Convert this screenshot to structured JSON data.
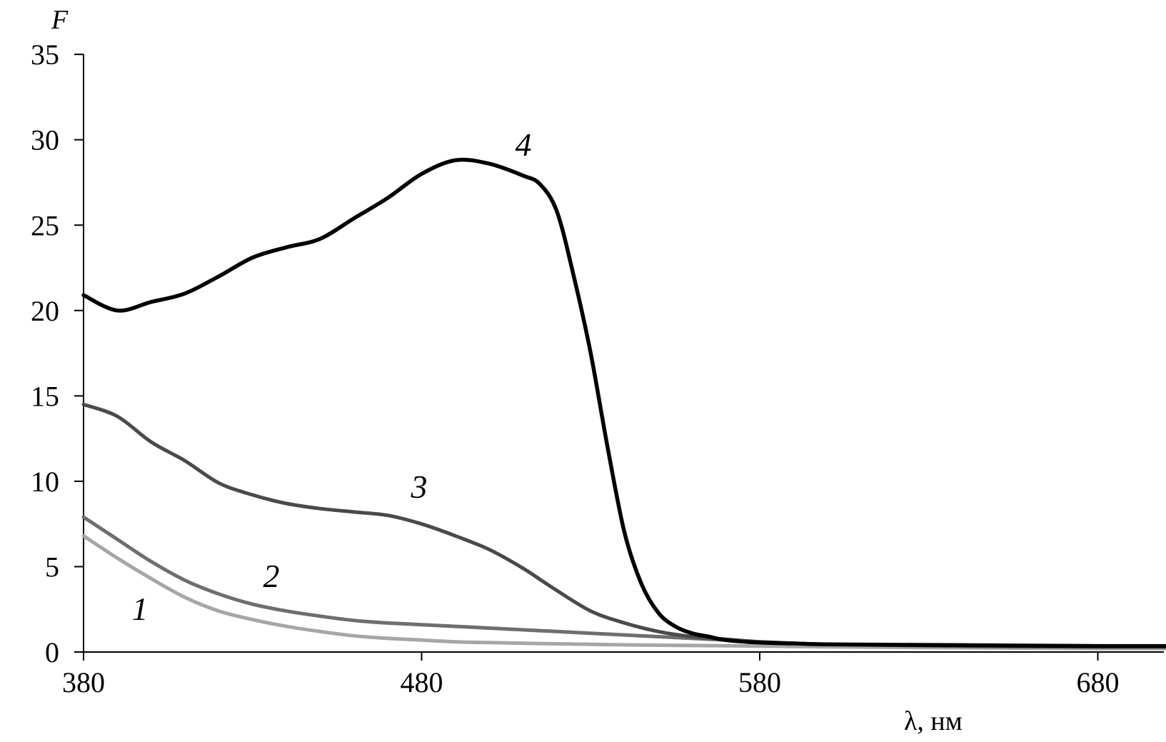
{
  "chart_data": {
    "type": "line",
    "title": "",
    "xlabel": "λ, нм",
    "ylabel": "F",
    "xlim": [
      380,
      700
    ],
    "ylim": [
      0,
      35
    ],
    "x_ticks": [
      380,
      480,
      580,
      680
    ],
    "y_ticks": [
      0,
      5,
      10,
      15,
      20,
      25,
      30,
      35
    ],
    "grid": false,
    "legend": "none",
    "series": [
      {
        "label": "1",
        "color": "#a6a6a6",
        "x": [
          380,
          390,
          400,
          410,
          420,
          430,
          440,
          450,
          460,
          470,
          480,
          490,
          500,
          520,
          540,
          560,
          580,
          600,
          640,
          680,
          700
        ],
        "y": [
          6.8,
          5.5,
          4.3,
          3.2,
          2.4,
          1.9,
          1.5,
          1.2,
          0.95,
          0.8,
          0.7,
          0.6,
          0.55,
          0.48,
          0.42,
          0.38,
          0.35,
          0.3,
          0.25,
          0.2,
          0.2
        ]
      },
      {
        "label": "2",
        "color": "#6e6e6e",
        "x": [
          380,
          390,
          400,
          410,
          420,
          430,
          440,
          450,
          460,
          470,
          480,
          490,
          500,
          520,
          540,
          560,
          580,
          600,
          640,
          680,
          700
        ],
        "y": [
          7.9,
          6.6,
          5.3,
          4.2,
          3.4,
          2.8,
          2.4,
          2.1,
          1.85,
          1.7,
          1.6,
          1.5,
          1.4,
          1.2,
          1.0,
          0.8,
          0.6,
          0.45,
          0.35,
          0.3,
          0.3
        ]
      },
      {
        "label": "3",
        "color": "#4a4a4a",
        "x": [
          380,
          390,
          400,
          410,
          420,
          430,
          440,
          450,
          460,
          470,
          480,
          490,
          500,
          510,
          520,
          530,
          540,
          550,
          560,
          570,
          580,
          600,
          640,
          680,
          700
        ],
        "y": [
          14.5,
          13.8,
          12.3,
          11.2,
          9.9,
          9.2,
          8.7,
          8.4,
          8.2,
          8.0,
          7.5,
          6.8,
          6.0,
          4.9,
          3.6,
          2.4,
          1.7,
          1.2,
          0.9,
          0.75,
          0.6,
          0.45,
          0.35,
          0.3,
          0.3
        ]
      },
      {
        "label": "4",
        "color": "#000000",
        "x": [
          380,
          390,
          400,
          410,
          420,
          430,
          440,
          450,
          460,
          470,
          480,
          490,
          500,
          510,
          515,
          520,
          525,
          530,
          535,
          540,
          545,
          550,
          555,
          560,
          565,
          570,
          580,
          590,
          600,
          640,
          680,
          700
        ],
        "y": [
          20.9,
          20.0,
          20.5,
          21.0,
          22.0,
          23.1,
          23.7,
          24.2,
          25.4,
          26.6,
          28.0,
          28.8,
          28.6,
          27.9,
          27.4,
          25.8,
          22.0,
          17.5,
          12.0,
          7.0,
          4.0,
          2.3,
          1.5,
          1.1,
          0.9,
          0.7,
          0.55,
          0.5,
          0.45,
          0.4,
          0.35,
          0.35
        ]
      }
    ]
  }
}
